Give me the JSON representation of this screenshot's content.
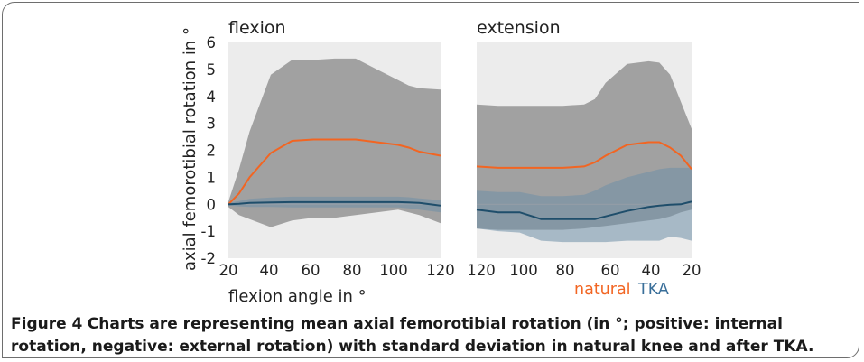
{
  "figure": {
    "label": "Figure 4",
    "text": "Charts are representing mean axial femorotibial rotation (in °; positive: internal rotation, negative: external rotation) with standard deviation in natural knee and after TKA."
  },
  "colors": {
    "natural": "#f26522",
    "tka": "#1f4e6b",
    "tka_legend": "#3a6f9a",
    "band_gray": "#8c8c8c",
    "band_tka": "#6f8fa8"
  },
  "chart_data": [
    {
      "type": "line",
      "title": "flexion",
      "xlabel": "flexion angle in °",
      "ylabel": "axial femorotibial rotation in °",
      "xlim": [
        20,
        120
      ],
      "ylim": [
        -2,
        6
      ],
      "xticks": [
        "20",
        "40",
        "60",
        "80",
        "100",
        "120"
      ],
      "yticks": [
        "-2",
        "-1",
        "0",
        "1",
        "2",
        "3",
        "4",
        "5",
        "6"
      ],
      "series": [
        {
          "name": "natural",
          "x": [
            20,
            25,
            30,
            40,
            50,
            60,
            70,
            80,
            90,
            100,
            105,
            110,
            120
          ],
          "values": [
            0.0,
            0.4,
            1.0,
            1.9,
            2.35,
            2.4,
            2.4,
            2.4,
            2.3,
            2.2,
            2.1,
            1.95,
            1.8
          ],
          "upper": [
            0.1,
            1.3,
            2.7,
            4.8,
            5.35,
            5.35,
            5.4,
            5.4,
            5.0,
            4.6,
            4.4,
            4.3,
            4.25
          ],
          "lower": [
            -0.1,
            -0.4,
            -0.55,
            -0.85,
            -0.6,
            -0.5,
            -0.5,
            -0.4,
            -0.3,
            -0.2,
            -0.3,
            -0.4,
            -0.7
          ]
        },
        {
          "name": "TKA",
          "x": [
            20,
            25,
            30,
            40,
            50,
            60,
            70,
            80,
            90,
            100,
            105,
            110,
            120
          ],
          "values": [
            0.0,
            0.02,
            0.05,
            0.07,
            0.08,
            0.08,
            0.08,
            0.08,
            0.08,
            0.08,
            0.07,
            0.05,
            -0.05
          ],
          "upper": [
            0.05,
            0.12,
            0.2,
            0.25,
            0.28,
            0.28,
            0.28,
            0.28,
            0.28,
            0.28,
            0.26,
            0.22,
            0.15
          ],
          "lower": [
            -0.05,
            -0.08,
            -0.1,
            -0.1,
            -0.12,
            -0.12,
            -0.12,
            -0.12,
            -0.12,
            -0.12,
            -0.15,
            -0.2,
            -0.3
          ]
        }
      ]
    },
    {
      "type": "line",
      "title": "extension",
      "xlabel": "",
      "ylabel": "",
      "xlim": [
        120,
        20
      ],
      "ylim": [
        -2,
        6
      ],
      "xticks": [
        "120",
        "100",
        "80",
        "60",
        "40",
        "20"
      ],
      "yticks": [],
      "series": [
        {
          "name": "natural",
          "x": [
            120,
            110,
            100,
            90,
            80,
            70,
            65,
            60,
            50,
            40,
            35,
            30,
            25,
            20
          ],
          "values": [
            1.4,
            1.35,
            1.35,
            1.35,
            1.35,
            1.4,
            1.55,
            1.8,
            2.2,
            2.3,
            2.3,
            2.1,
            1.8,
            1.3
          ],
          "upper": [
            3.7,
            3.65,
            3.65,
            3.65,
            3.65,
            3.7,
            3.9,
            4.5,
            5.2,
            5.3,
            5.25,
            4.8,
            3.8,
            2.8
          ],
          "lower": [
            -0.9,
            -0.95,
            -0.95,
            -0.95,
            -0.95,
            -0.9,
            -0.85,
            -0.8,
            -0.7,
            -0.6,
            -0.55,
            -0.45,
            -0.3,
            -0.2
          ]
        },
        {
          "name": "TKA",
          "x": [
            120,
            110,
            100,
            90,
            80,
            70,
            65,
            60,
            50,
            40,
            35,
            30,
            25,
            20
          ],
          "values": [
            -0.2,
            -0.3,
            -0.3,
            -0.55,
            -0.55,
            -0.55,
            -0.55,
            -0.45,
            -0.25,
            -0.1,
            -0.05,
            -0.02,
            0.0,
            0.1
          ],
          "upper": [
            0.5,
            0.45,
            0.45,
            0.3,
            0.3,
            0.35,
            0.5,
            0.7,
            1.0,
            1.2,
            1.3,
            1.35,
            1.35,
            1.35
          ],
          "lower": [
            -0.9,
            -1.0,
            -1.05,
            -1.35,
            -1.4,
            -1.4,
            -1.4,
            -1.4,
            -1.35,
            -1.35,
            -1.35,
            -1.2,
            -1.25,
            -1.35
          ]
        }
      ]
    }
  ],
  "legend": {
    "natural": "natural",
    "tka": "TKA"
  }
}
